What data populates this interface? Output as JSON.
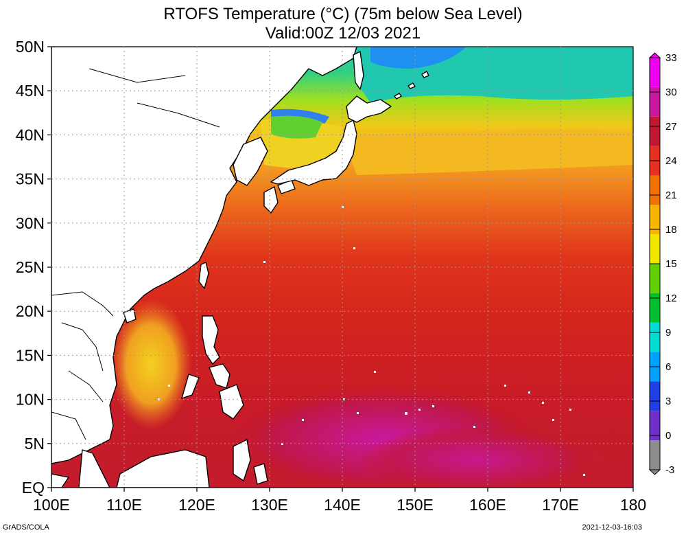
{
  "title_line1": "RTOFS Temperature (°C) (75m below Sea Level)",
  "title_line2": "Valid:00Z 12/03 2021",
  "footer_left": "GrADS/COLA",
  "footer_right": "2021-12-03-16:03",
  "chart_data": {
    "type": "heatmap",
    "x_ticks": [
      "100E",
      "110E",
      "120E",
      "130E",
      "140E",
      "150E",
      "160E",
      "170E",
      "180"
    ],
    "y_ticks": [
      "EQ",
      "5N",
      "10N",
      "15N",
      "20N",
      "25N",
      "30N",
      "35N",
      "40N",
      "45N",
      "50N"
    ],
    "lon_range": [
      100,
      180
    ],
    "lat_range": [
      0,
      50
    ],
    "colorbar": {
      "ticks": [
        "-3",
        "0",
        "3",
        "6",
        "9",
        "12",
        "15",
        "18",
        "21",
        "24",
        "27",
        "30",
        "33"
      ],
      "range": [
        -3,
        33
      ],
      "colors": [
        "#8c8c8c",
        "#6f2fc8",
        "#2040e6",
        "#00a0ff",
        "#00dcd2",
        "#00c030",
        "#60d000",
        "#f0e600",
        "#f8b400",
        "#f07000",
        "#e63020",
        "#c01830",
        "#c818a0",
        "#f000f0"
      ]
    },
    "grid": true,
    "temperature_fields": [
      {
        "region": "far north-east (45-50N, 140-180E)",
        "temp_c": 8
      },
      {
        "region": "Sea of Japan / north (40-45N)",
        "temp_c": 12
      },
      {
        "region": "Kuroshio extension (35-40N)",
        "temp_c": 19
      },
      {
        "region": "subtropical gyre (25-35N)",
        "temp_c": 22
      },
      {
        "region": "tropical west Pacific (10-25N)",
        "temp_c": 26
      },
      {
        "region": "warm pool (2-10N, 130-160E)",
        "temp_c": 29
      },
      {
        "region": "South China Sea (8-20N, 108-115E)",
        "temp_c": 20
      }
    ]
  }
}
